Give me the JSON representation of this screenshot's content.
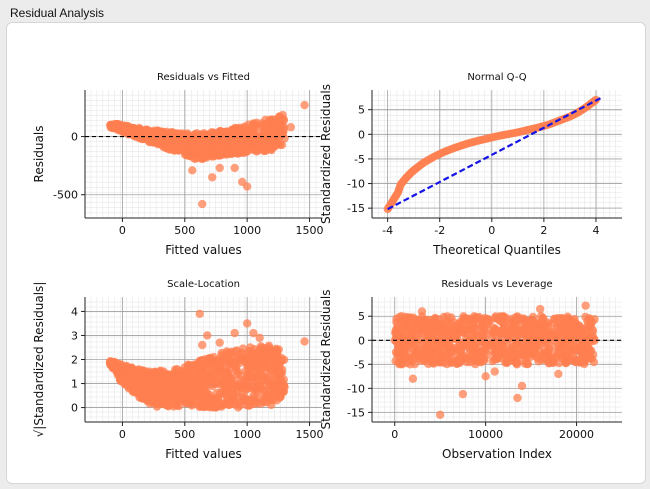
{
  "window": {
    "title": "Residual Analysis"
  },
  "colors": {
    "point": "#ff7f50",
    "qq_line": "#1414e6",
    "zero_line": "#000000"
  },
  "chart_data": [
    {
      "type": "scatter",
      "title": "Residuals vs Fitted",
      "xlabel": "Fitted values",
      "ylabel": "Residuals",
      "xlim": [
        -300,
        1600
      ],
      "ylim": [
        -700,
        400
      ],
      "xticks": [
        0,
        500,
        1000,
        1500
      ],
      "yticks": [
        -500,
        0
      ],
      "reference_line": {
        "y": 0,
        "style": "dashed"
      },
      "grid": true,
      "series": [
        {
          "band": [
            [
              -100,
              120,
              80
            ],
            [
              0,
              100,
              40
            ],
            [
              200,
              60,
              -40
            ],
            [
              400,
              40,
              -120
            ],
            [
              600,
              30,
              -200
            ],
            [
              800,
              50,
              -160
            ],
            [
              1000,
              100,
              -140
            ],
            [
              1200,
              160,
              -120
            ],
            [
              1300,
              200,
              -60
            ]
          ]
        },
        {
          "points": [
            [
              1460,
              270
            ],
            [
              1350,
              80
            ],
            [
              640,
              -580
            ],
            [
              960,
              -390
            ],
            [
              1000,
              -430
            ],
            [
              900,
              -270
            ],
            [
              720,
              -350
            ],
            [
              780,
              -270
            ],
            [
              560,
              -290
            ]
          ]
        }
      ]
    },
    {
      "type": "scatter",
      "title": "Normal Q-Q",
      "xlabel": "Theoretical Quantiles",
      "ylabel": "Standardized Residuals",
      "xlim": [
        -4.6,
        5
      ],
      "ylim": [
        -17,
        9
      ],
      "xticks": [
        -4,
        -2,
        0,
        2,
        4
      ],
      "yticks": [
        -15,
        -10,
        -5,
        0,
        5
      ],
      "grid": true,
      "series": [
        {
          "points": [
            [
              -4.0,
              -15.2
            ],
            [
              -3.8,
              -13.5
            ],
            [
              -3.6,
              -11.8
            ],
            [
              -3.5,
              -10.2
            ],
            [
              -3.3,
              -8.9
            ],
            [
              -3.1,
              -7.8
            ],
            [
              -2.9,
              -6.9
            ],
            [
              -2.6,
              -5.7
            ],
            [
              -2.2,
              -4.5
            ],
            [
              -1.8,
              -3.5
            ],
            [
              -1.4,
              -2.7
            ],
            [
              -1.0,
              -2.0
            ],
            [
              -0.6,
              -1.4
            ],
            [
              -0.2,
              -0.9
            ],
            [
              0.2,
              -0.4
            ],
            [
              0.6,
              0.0
            ],
            [
              1.0,
              0.4
            ],
            [
              1.4,
              0.9
            ],
            [
              1.8,
              1.4
            ],
            [
              2.2,
              2.0
            ],
            [
              2.6,
              2.8
            ],
            [
              3.0,
              3.6
            ],
            [
              3.3,
              4.4
            ],
            [
              3.6,
              5.4
            ],
            [
              3.8,
              6.2
            ],
            [
              4.0,
              7.0
            ]
          ]
        }
      ],
      "reference_line": {
        "from": [
          -4.0,
          -15.2
        ],
        "to": [
          4.2,
          7.4
        ],
        "style": "dashed"
      }
    },
    {
      "type": "scatter",
      "title": "Scale-Location",
      "xlabel": "Fitted values",
      "ylabel": "√|Standardized Residuals|",
      "xlim": [
        -300,
        1600
      ],
      "ylim": [
        -0.6,
        4.6
      ],
      "xticks": [
        0,
        500,
        1000,
        1500
      ],
      "yticks": [
        0,
        1,
        2,
        3,
        4
      ],
      "grid": true,
      "series": [
        {
          "band": [
            [
              -100,
              2.0,
              1.8
            ],
            [
              0,
              1.8,
              1.0
            ],
            [
              200,
              1.5,
              0.05
            ],
            [
              400,
              1.6,
              0.0
            ],
            [
              600,
              1.9,
              0.0
            ],
            [
              800,
              2.3,
              0.0
            ],
            [
              1000,
              2.5,
              0.0
            ],
            [
              1200,
              2.6,
              0.1
            ],
            [
              1300,
              2.3,
              0.6
            ]
          ]
        },
        {
          "points": [
            [
              620,
              3.9
            ],
            [
              1460,
              2.75
            ],
            [
              1000,
              3.5
            ],
            [
              900,
              3.1
            ],
            [
              680,
              3.0
            ],
            [
              1050,
              3.1
            ],
            [
              640,
              2.6
            ],
            [
              780,
              2.7
            ],
            [
              1100,
              2.9
            ]
          ]
        }
      ]
    },
    {
      "type": "scatter",
      "title": "Residuals vs Leverage",
      "xlabel": "Observation Index",
      "ylabel": "Standardized Residuals",
      "xlim": [
        -2500,
        25000
      ],
      "ylim": [
        -17,
        9
      ],
      "xticks": [
        0,
        10000,
        20000
      ],
      "yticks": [
        -15,
        -10,
        -5,
        0,
        5
      ],
      "reference_line": {
        "y": 0,
        "style": "dashed"
      },
      "grid": true,
      "series": [
        {
          "band": [
            [
              0,
              5,
              -5
            ],
            [
              5000,
              5,
              -5
            ],
            [
              10000,
              5,
              -5
            ],
            [
              15000,
              5,
              -5
            ],
            [
              20000,
              5,
              -5
            ],
            [
              22000,
              5,
              -5
            ]
          ]
        },
        {
          "points": [
            [
              5000,
              -15.5
            ],
            [
              13500,
              -12
            ],
            [
              7500,
              -11.2
            ],
            [
              14000,
              -9.5
            ],
            [
              2000,
              -8
            ],
            [
              18000,
              -7
            ],
            [
              10000,
              -7.5
            ],
            [
              21000,
              7.2
            ],
            [
              16000,
              6.5
            ],
            [
              3000,
              6
            ],
            [
              11000,
              -6.5
            ]
          ]
        }
      ]
    }
  ]
}
